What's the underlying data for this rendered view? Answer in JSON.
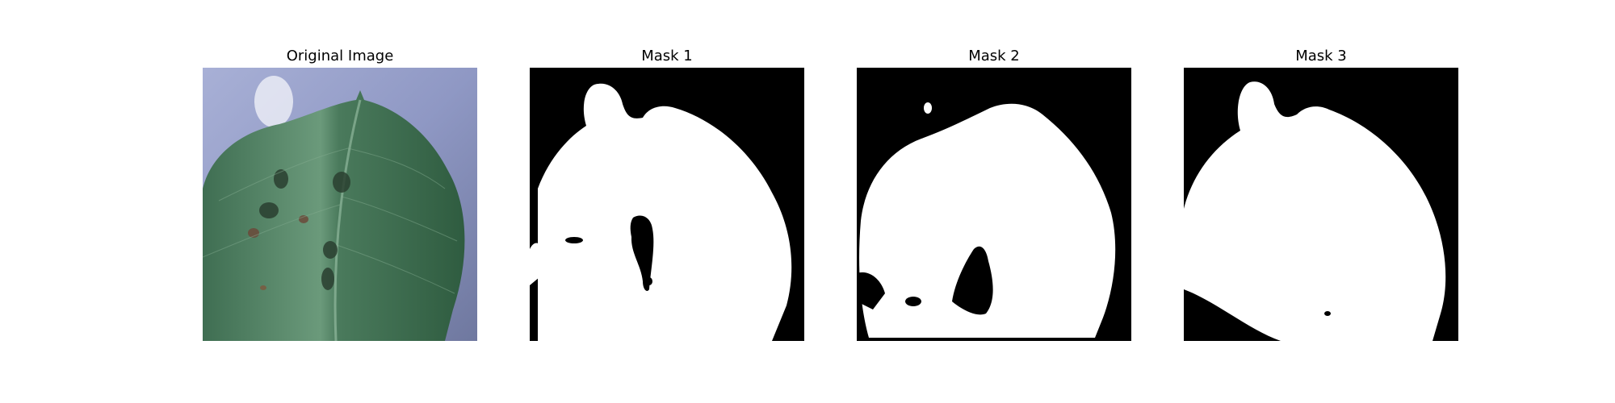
{
  "figure": {
    "panels": [
      {
        "id": "original",
        "title": "Original Image"
      },
      {
        "id": "mask-1",
        "title": "Mask 1"
      },
      {
        "id": "mask-2",
        "title": "Mask 2"
      },
      {
        "id": "mask-3",
        "title": "Mask 3"
      }
    ],
    "colors": {
      "background": "#ffffff",
      "mask_foreground": "#ffffff",
      "mask_background": "#000000",
      "leaf_dark": "#3c6a4c",
      "leaf_light": "#6a9a78",
      "backdrop": "#9aa3c8"
    }
  }
}
